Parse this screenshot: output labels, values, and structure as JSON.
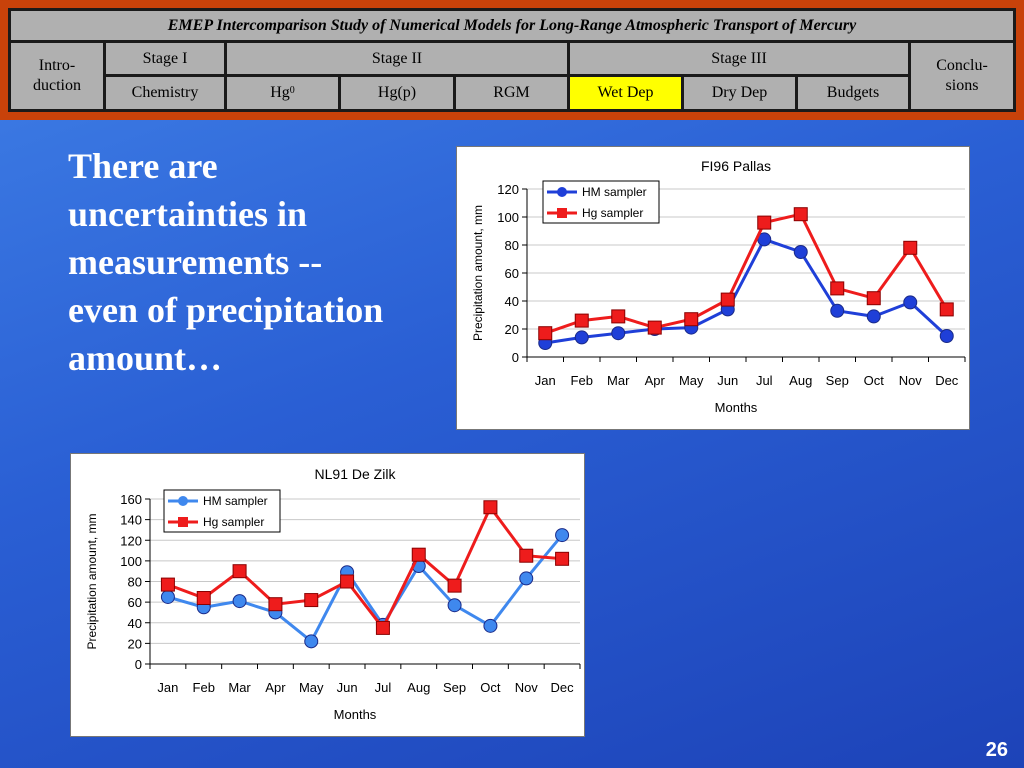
{
  "header": {
    "title": "EMEP Intercomparison Study of Numerical Models for Long-Range Atmospheric Transport of Mercury",
    "intro_line1": "Intro-",
    "intro_line2": "duction",
    "stage1": "Stage I",
    "stage2": "Stage II",
    "stage3": "Stage III",
    "concl_line1": "Conclu-",
    "concl_line2": "sions",
    "chemistry": "Chemistry",
    "hg0_base": "Hg",
    "hg0_sup": "0",
    "hgp": "Hg(p)",
    "rgm": "RGM",
    "wetdep": "Wet Dep",
    "drydep": "Dry Dep",
    "budgets": "Budgets"
  },
  "slide_text": "There are uncertainties in measurements -- even of precipitation amount…",
  "page_number": "26",
  "colors": {
    "hm": "#1f3fd8",
    "hm2": "#3f88ee",
    "hg": "#ee1c1c",
    "active_tab": "#ffff00",
    "header_border": "#c8420a"
  },
  "chart_data": [
    {
      "type": "line",
      "title": "FI96 Pallas",
      "xlabel": "Months",
      "ylabel": "Precipitation amount, mm",
      "categories": [
        "Jan",
        "Feb",
        "Mar",
        "Apr",
        "May",
        "Jun",
        "Jul",
        "Aug",
        "Sep",
        "Oct",
        "Nov",
        "Dec"
      ],
      "ylim": [
        0,
        120
      ],
      "yticks": [
        0,
        20,
        40,
        60,
        80,
        100,
        120
      ],
      "grid": true,
      "legend": "top-left",
      "series": [
        {
          "name": "HM sampler",
          "values": [
            10,
            14,
            17,
            20,
            21,
            34,
            84,
            75,
            33,
            29,
            39,
            15
          ]
        },
        {
          "name": "Hg sampler",
          "values": [
            17,
            26,
            29,
            21,
            27,
            41,
            96,
            102,
            49,
            42,
            78,
            34
          ]
        }
      ]
    },
    {
      "type": "line",
      "title": "NL91 De Zilk",
      "xlabel": "Months",
      "ylabel": "Precipitation amount, mm",
      "categories": [
        "Jan",
        "Feb",
        "Mar",
        "Apr",
        "May",
        "Jun",
        "Jul",
        "Aug",
        "Sep",
        "Oct",
        "Nov",
        "Dec"
      ],
      "ylim": [
        0,
        160
      ],
      "yticks": [
        0,
        20,
        40,
        60,
        80,
        100,
        120,
        140,
        160
      ],
      "grid": true,
      "legend": "top-left",
      "series": [
        {
          "name": "HM sampler",
          "values": [
            65,
            55,
            61,
            50,
            22,
            89,
            38,
            95,
            57,
            37,
            83,
            125
          ]
        },
        {
          "name": "Hg sampler",
          "values": [
            77,
            64,
            90,
            58,
            62,
            80,
            35,
            106,
            76,
            152,
            105,
            102
          ]
        }
      ]
    }
  ]
}
